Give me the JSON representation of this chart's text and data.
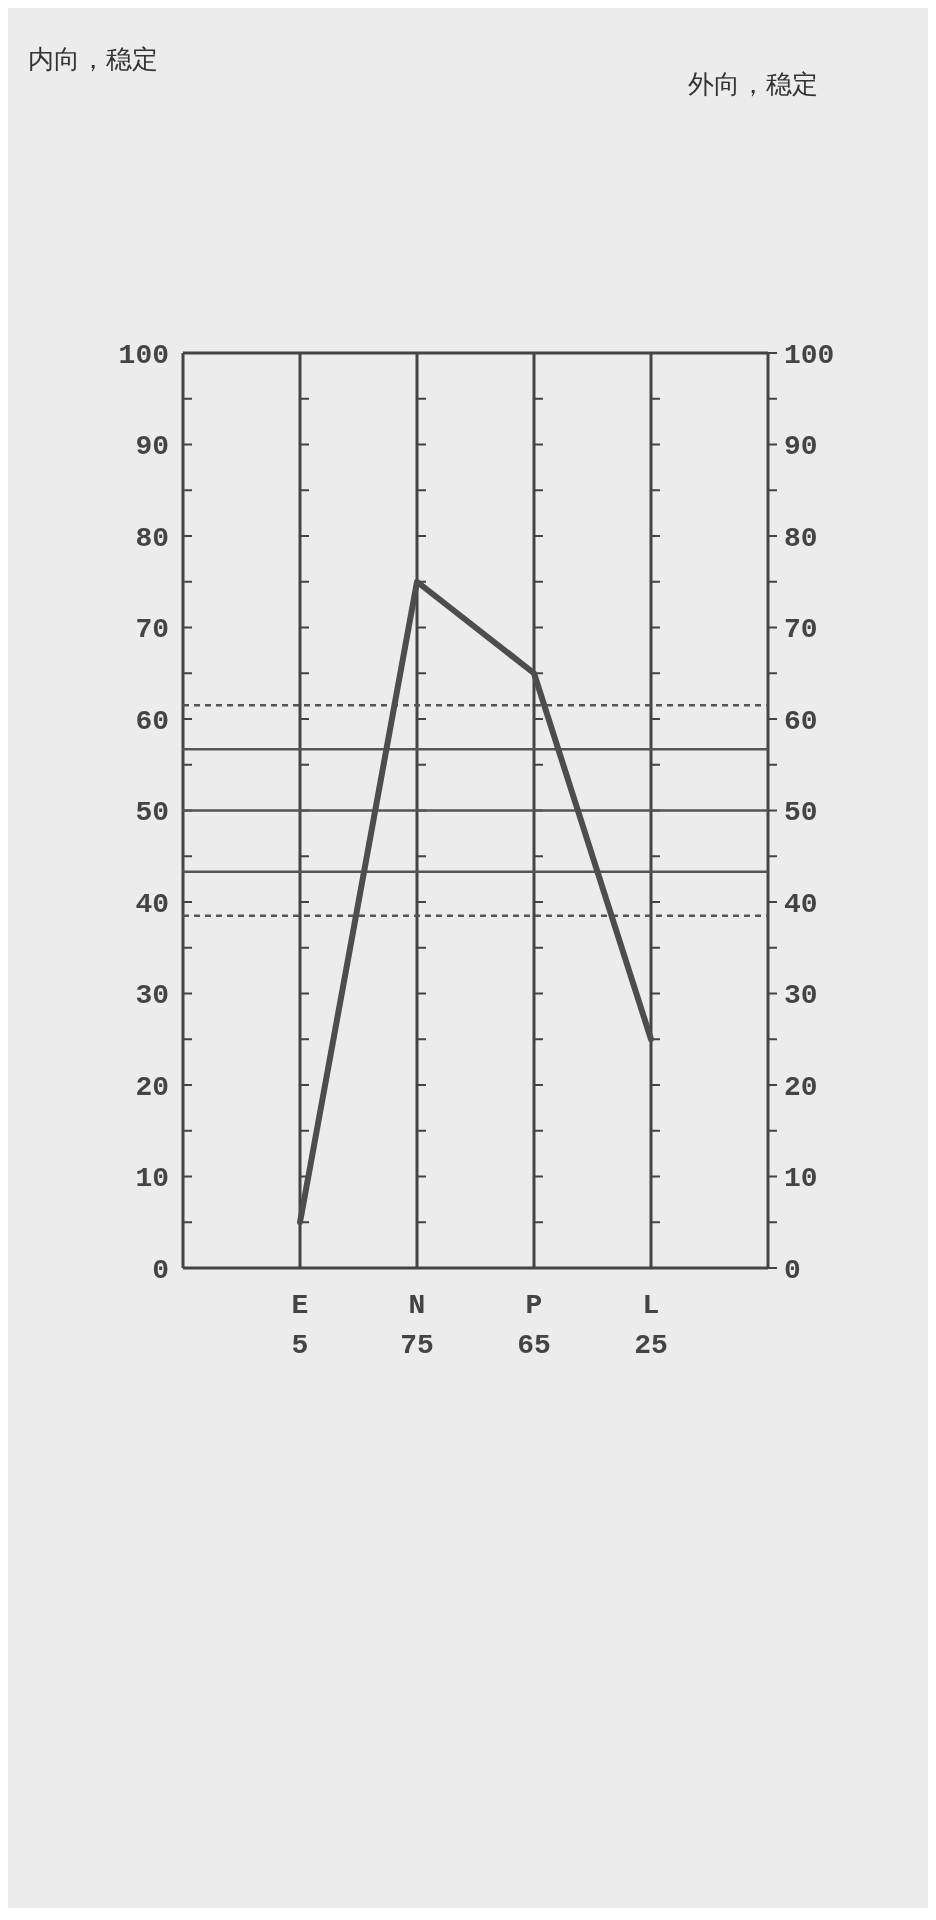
{
  "chart_data": {
    "type": "line",
    "categories": [
      "E",
      "N",
      "P",
      "L"
    ],
    "series": [
      {
        "color": "#4d4d4d",
        "values": [
          5,
          75,
          65,
          25
        ],
        "value_labels": [
          "5",
          "75",
          "65",
          "25"
        ]
      }
    ],
    "ylim": [
      0,
      100
    ],
    "yticks": [
      0,
      10,
      20,
      30,
      40,
      50,
      60,
      70,
      80,
      90,
      100
    ],
    "y2lim": [
      0,
      100
    ],
    "y2ticks": [
      0,
      10,
      20,
      30,
      40,
      50,
      60,
      70,
      80,
      90,
      100
    ],
    "grid": "x",
    "ref_lines": [
      {
        "axis": "y",
        "value": 61.5,
        "line_style": "dashed",
        "color": "#555555"
      },
      {
        "axis": "y",
        "value": 56.7,
        "line_style": "solid",
        "color": "#555555"
      },
      {
        "axis": "y",
        "value": 50,
        "line_style": "solid",
        "color": "#555555"
      },
      {
        "axis": "y",
        "value": 43.3,
        "line_style": "solid",
        "color": "#555555"
      },
      {
        "axis": "y",
        "value": 38.5,
        "line_style": "dashed",
        "color": "#555555"
      }
    ],
    "annotations": [
      "内向，稳定",
      "外向，稳定"
    ]
  }
}
